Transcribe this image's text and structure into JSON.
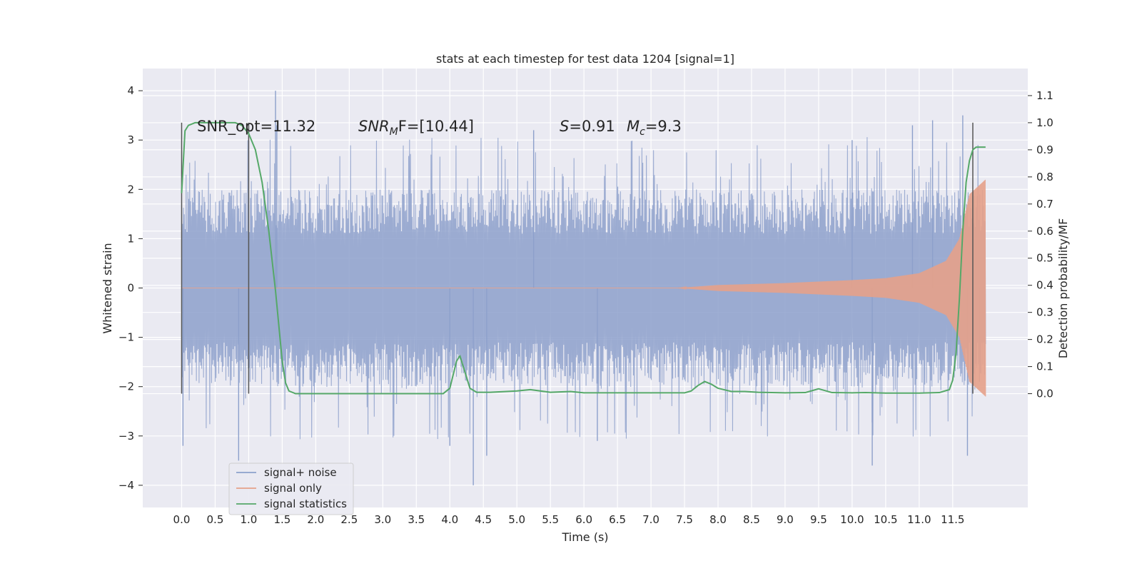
{
  "chart_data": {
    "type": "line",
    "title": "stats at each timestep for test data 1204 [signal=1]",
    "xlabel": "Time (s)",
    "ylabel": "Whitened strain",
    "ylabel_right": "Detection probability/MF",
    "xlim": [
      -0.58,
      12.62
    ],
    "ylim": [
      -4.45,
      4.45
    ],
    "ylim_right": [
      -0.42,
      1.2
    ],
    "x_ticks": [
      "0.0",
      "0.5",
      "1.0",
      "1.5",
      "2.0",
      "2.5",
      "3.0",
      "3.5",
      "4.0",
      "4.5",
      "5.0",
      "5.5",
      "6.0",
      "6.5",
      "7.0",
      "7.5",
      "8.0",
      "8.5",
      "9.0",
      "9.5",
      "10.0",
      "10.5",
      "11.0",
      "11.5"
    ],
    "y_ticks": [
      "4",
      "3",
      "2",
      "1",
      "0",
      "−1",
      "−2",
      "−3",
      "−4"
    ],
    "y_ticks_right": [
      "1.1",
      "1.0",
      "0.9",
      "0.8",
      "0.7",
      "0.6",
      "0.5",
      "0.4",
      "0.3",
      "0.2",
      "0.1",
      "0.0"
    ],
    "grid": true,
    "legend_position": "lower-left",
    "annotations": {
      "snr_opt": "SNR_opt=11.32",
      "snr_mf_base": "SNR",
      "snr_mf_sub": "M",
      "snr_mf_tail": "F=[10.44]",
      "s_var": "S",
      "s_val": "=0.91",
      "mc_var": "M",
      "mc_sub": "c",
      "mc_val": "=9.3"
    },
    "vertical_markers_x": [
      0.0,
      1.0,
      11.8
    ],
    "series": [
      {
        "name": "signal+ noise",
        "color": "#8da0cb",
        "x_range": [
          0.0,
          11.99
        ],
        "envelope_typical": 2.0,
        "peaks": [
          [
            0.02,
            -3.2
          ],
          [
            0.85,
            -3.5
          ],
          [
            1.4,
            4.0
          ],
          [
            1.42,
            3.3
          ],
          [
            4.0,
            -3.2
          ],
          [
            4.35,
            -4.0
          ],
          [
            4.55,
            -3.4
          ],
          [
            5.25,
            3.2
          ],
          [
            6.2,
            -3.1
          ],
          [
            10.0,
            3.0
          ],
          [
            10.3,
            -3.6
          ],
          [
            10.9,
            3.3
          ],
          [
            11.2,
            3.4
          ],
          [
            11.65,
            3.5
          ],
          [
            11.72,
            -3.4
          ],
          [
            11.9,
            -1.9
          ]
        ]
      },
      {
        "name": "signal only",
        "color": "#e5a189",
        "x_range": [
          0.0,
          11.99
        ],
        "amplitude_start": 0.0,
        "amplitude_at_x": [
          [
            7.4,
            0.0
          ],
          [
            8.0,
            0.06
          ],
          [
            9.0,
            0.1
          ],
          [
            10.0,
            0.16
          ],
          [
            10.5,
            0.2
          ],
          [
            11.0,
            0.3
          ],
          [
            11.4,
            0.55
          ],
          [
            11.6,
            1.0
          ],
          [
            11.75,
            1.9
          ],
          [
            11.99,
            2.2
          ]
        ]
      },
      {
        "name": "signal statistics",
        "color": "#55a868",
        "axis": "right",
        "x": [
          0.0,
          0.05,
          0.1,
          0.2,
          0.3,
          0.5,
          0.8,
          0.9,
          1.0,
          1.1,
          1.2,
          1.3,
          1.4,
          1.45,
          1.5,
          1.55,
          1.6,
          1.7,
          2.0,
          3.0,
          3.9,
          4.0,
          4.05,
          4.1,
          4.15,
          4.2,
          4.3,
          4.4,
          4.6,
          5.0,
          5.2,
          5.5,
          5.8,
          6.0,
          6.5,
          7.0,
          7.5,
          7.6,
          7.7,
          7.8,
          7.9,
          8.0,
          8.2,
          8.4,
          8.6,
          9.0,
          9.3,
          9.5,
          9.7,
          10.0,
          10.2,
          10.5,
          11.0,
          11.3,
          11.45,
          11.5,
          11.55,
          11.6,
          11.65,
          11.7,
          11.75,
          11.8,
          11.85,
          11.9,
          11.95,
          11.99
        ],
        "y": [
          0.74,
          0.97,
          0.99,
          1.0,
          1.0,
          1.0,
          1.0,
          0.99,
          0.96,
          0.9,
          0.78,
          0.6,
          0.38,
          0.25,
          0.12,
          0.04,
          0.01,
          0.0,
          0.0,
          0.0,
          0.0,
          0.02,
          0.07,
          0.12,
          0.14,
          0.1,
          0.02,
          0.005,
          0.005,
          0.01,
          0.015,
          0.005,
          0.008,
          0.003,
          0.003,
          0.003,
          0.003,
          0.01,
          0.03,
          0.045,
          0.035,
          0.02,
          0.008,
          0.008,
          0.005,
          0.003,
          0.004,
          0.018,
          0.004,
          0.003,
          0.004,
          0.002,
          0.002,
          0.004,
          0.015,
          0.05,
          0.15,
          0.35,
          0.6,
          0.78,
          0.86,
          0.9,
          0.91,
          0.91,
          0.91,
          0.91
        ]
      }
    ]
  }
}
